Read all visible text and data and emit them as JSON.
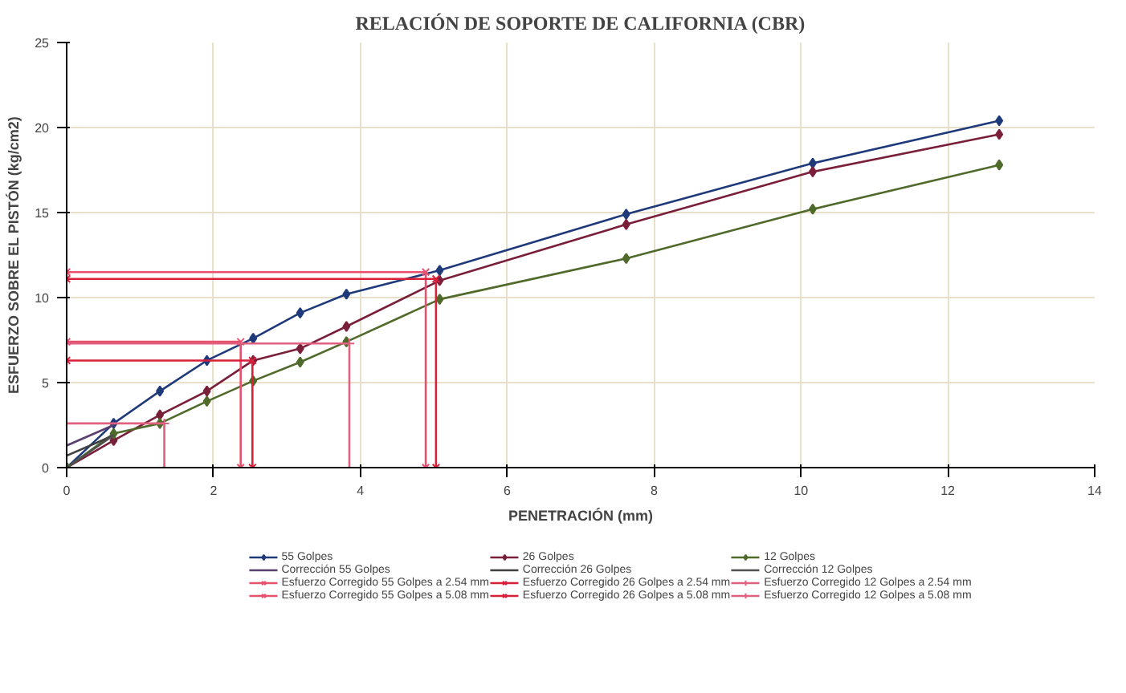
{
  "chart_data": {
    "type": "line",
    "title": "RELACIÓN DE SOPORTE DE CALIFORNIA (CBR)",
    "xlabel": "PENETRACIÓN (mm)",
    "ylabel": "ESFUERZO SOBRE EL PISTÓN (kg/cm2)",
    "xlim": [
      0,
      14
    ],
    "ylim": [
      0,
      25
    ],
    "xticks": [
      0,
      2,
      4,
      6,
      8,
      10,
      12,
      14
    ],
    "yticks": [
      0,
      5,
      10,
      15,
      20,
      25
    ],
    "grid": true,
    "legend": "bottom",
    "line_style": "solid",
    "series": [
      {
        "name": "55 Golpes",
        "color": "#1f3a7a",
        "marker": "diamond",
        "x": [
          0,
          0.64,
          1.27,
          1.91,
          2.54,
          3.18,
          3.81,
          5.08,
          7.62,
          10.16,
          12.7
        ],
        "values": [
          0,
          2.6,
          4.5,
          6.3,
          7.6,
          9.1,
          10.2,
          11.6,
          14.9,
          17.9,
          20.4
        ]
      },
      {
        "name": "26 Golpes",
        "color": "#7a1f3a",
        "marker": "diamond",
        "x": [
          0,
          0.64,
          1.27,
          1.91,
          2.54,
          3.18,
          3.81,
          5.08,
          7.62,
          10.16,
          12.7
        ],
        "values": [
          0,
          1.6,
          3.1,
          4.5,
          6.3,
          7.0,
          8.3,
          11.0,
          14.3,
          17.4,
          19.6
        ]
      },
      {
        "name": "12 Golpes",
        "color": "#4f6a2a",
        "marker": "diamond",
        "x": [
          0,
          0.64,
          1.27,
          1.91,
          2.54,
          3.18,
          3.81,
          5.08,
          7.62,
          10.16,
          12.7
        ],
        "values": [
          0,
          2.0,
          2.6,
          3.9,
          5.1,
          6.2,
          7.4,
          9.9,
          12.3,
          15.2,
          17.8
        ]
      },
      {
        "name": "Corrección 55 Golpes",
        "color": "#5a4070",
        "marker": "none",
        "x": [
          0,
          0.64
        ],
        "values": [
          1.3,
          2.5
        ]
      },
      {
        "name": "Corrección 26 Golpes",
        "color": "#404040",
        "marker": "none",
        "x": [
          0,
          0.64
        ],
        "values": [
          0.7,
          1.9
        ]
      },
      {
        "name": "Corrección 12 Golpes",
        "color": "#505050",
        "marker": "none",
        "x": [
          0,
          0.64
        ],
        "values": [
          0,
          1.9
        ]
      },
      {
        "name": "Esfuerzo Corregido 55 Golpes a 2.54 mm",
        "color": "#e8506e",
        "marker": "x",
        "x": [
          0,
          2.37,
          2.37
        ],
        "values": [
          7.4,
          7.4,
          0
        ]
      },
      {
        "name": "Esfuerzo Corregido 26 Golpes a 2.54 mm",
        "color": "#d8203a",
        "marker": "x",
        "x": [
          0,
          2.53,
          2.53
        ],
        "values": [
          6.3,
          6.3,
          0
        ]
      },
      {
        "name": "Esfuerzo Corregido 12 Golpes a 2.54 mm",
        "color": "#e06080",
        "marker": "cross",
        "x": [
          0,
          1.33,
          1.33
        ],
        "values": [
          2.6,
          2.6,
          0
        ]
      },
      {
        "name": "Esfuerzo Corregido 55 Golpes a 5.08 mm",
        "color": "#e8506e",
        "marker": "x",
        "x": [
          0,
          4.89,
          4.89
        ],
        "values": [
          11.5,
          11.5,
          0
        ]
      },
      {
        "name": "Esfuerzo Corregido 26 Golpes a 5.08 mm",
        "color": "#d8203a",
        "marker": "x",
        "x": [
          0,
          5.03,
          5.03
        ],
        "values": [
          11.1,
          11.1,
          0
        ]
      },
      {
        "name": "Esfuerzo Corregido 12 Golpes a 5.08 mm",
        "color": "#e06080",
        "marker": "cross",
        "x": [
          0,
          3.85,
          3.85
        ],
        "values": [
          7.3,
          7.3,
          0
        ]
      }
    ]
  }
}
